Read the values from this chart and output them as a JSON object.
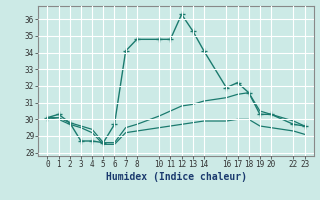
{
  "xlabel": "Humidex (Indice chaleur)",
  "bg_color": "#cceae6",
  "line_color": "#1a7a6e",
  "grid_color": "#ffffff",
  "ylim": [
    27.8,
    36.8
  ],
  "xlim": [
    -0.8,
    23.8
  ],
  "yticks": [
    28,
    29,
    30,
    31,
    32,
    33,
    34,
    35,
    36
  ],
  "xticks": [
    0,
    1,
    2,
    3,
    4,
    5,
    6,
    7,
    8,
    10,
    11,
    12,
    13,
    14,
    16,
    17,
    18,
    19,
    20,
    22,
    23
  ],
  "xtick_labels": [
    "0",
    "1",
    "2",
    "3",
    "4",
    "5",
    "6",
    "7",
    "8",
    "10",
    "11",
    "12",
    "13",
    "14",
    "16",
    "17",
    "18",
    "19",
    "20",
    "22",
    "23"
  ],
  "series1_x": [
    0,
    1,
    2,
    3,
    4,
    5,
    6,
    7,
    8,
    10,
    11,
    12,
    13,
    14,
    16,
    17,
    18,
    19,
    20,
    22,
    23
  ],
  "series1_y": [
    30.1,
    30.3,
    29.8,
    28.7,
    28.7,
    28.6,
    29.7,
    34.1,
    34.8,
    34.8,
    34.8,
    36.3,
    35.3,
    34.1,
    31.9,
    32.2,
    31.6,
    30.3,
    30.3,
    29.7,
    29.6
  ],
  "series2_x": [
    0,
    1,
    2,
    3,
    4,
    5,
    6,
    7,
    8,
    10,
    11,
    12,
    13,
    14,
    16,
    17,
    18,
    19,
    20,
    22,
    23
  ],
  "series2_y": [
    30.1,
    30.1,
    29.8,
    29.6,
    29.4,
    28.6,
    28.6,
    29.5,
    29.7,
    30.2,
    30.5,
    30.8,
    30.9,
    31.1,
    31.3,
    31.5,
    31.6,
    30.5,
    30.3,
    29.9,
    29.6
  ],
  "series3_x": [
    0,
    1,
    2,
    3,
    4,
    5,
    6,
    7,
    8,
    10,
    11,
    12,
    13,
    14,
    16,
    17,
    18,
    19,
    20,
    22,
    23
  ],
  "series3_y": [
    30.1,
    30.0,
    29.7,
    29.5,
    29.2,
    28.5,
    28.5,
    29.2,
    29.3,
    29.5,
    29.6,
    29.7,
    29.8,
    29.9,
    29.9,
    30.0,
    30.0,
    29.6,
    29.5,
    29.3,
    29.1
  ]
}
